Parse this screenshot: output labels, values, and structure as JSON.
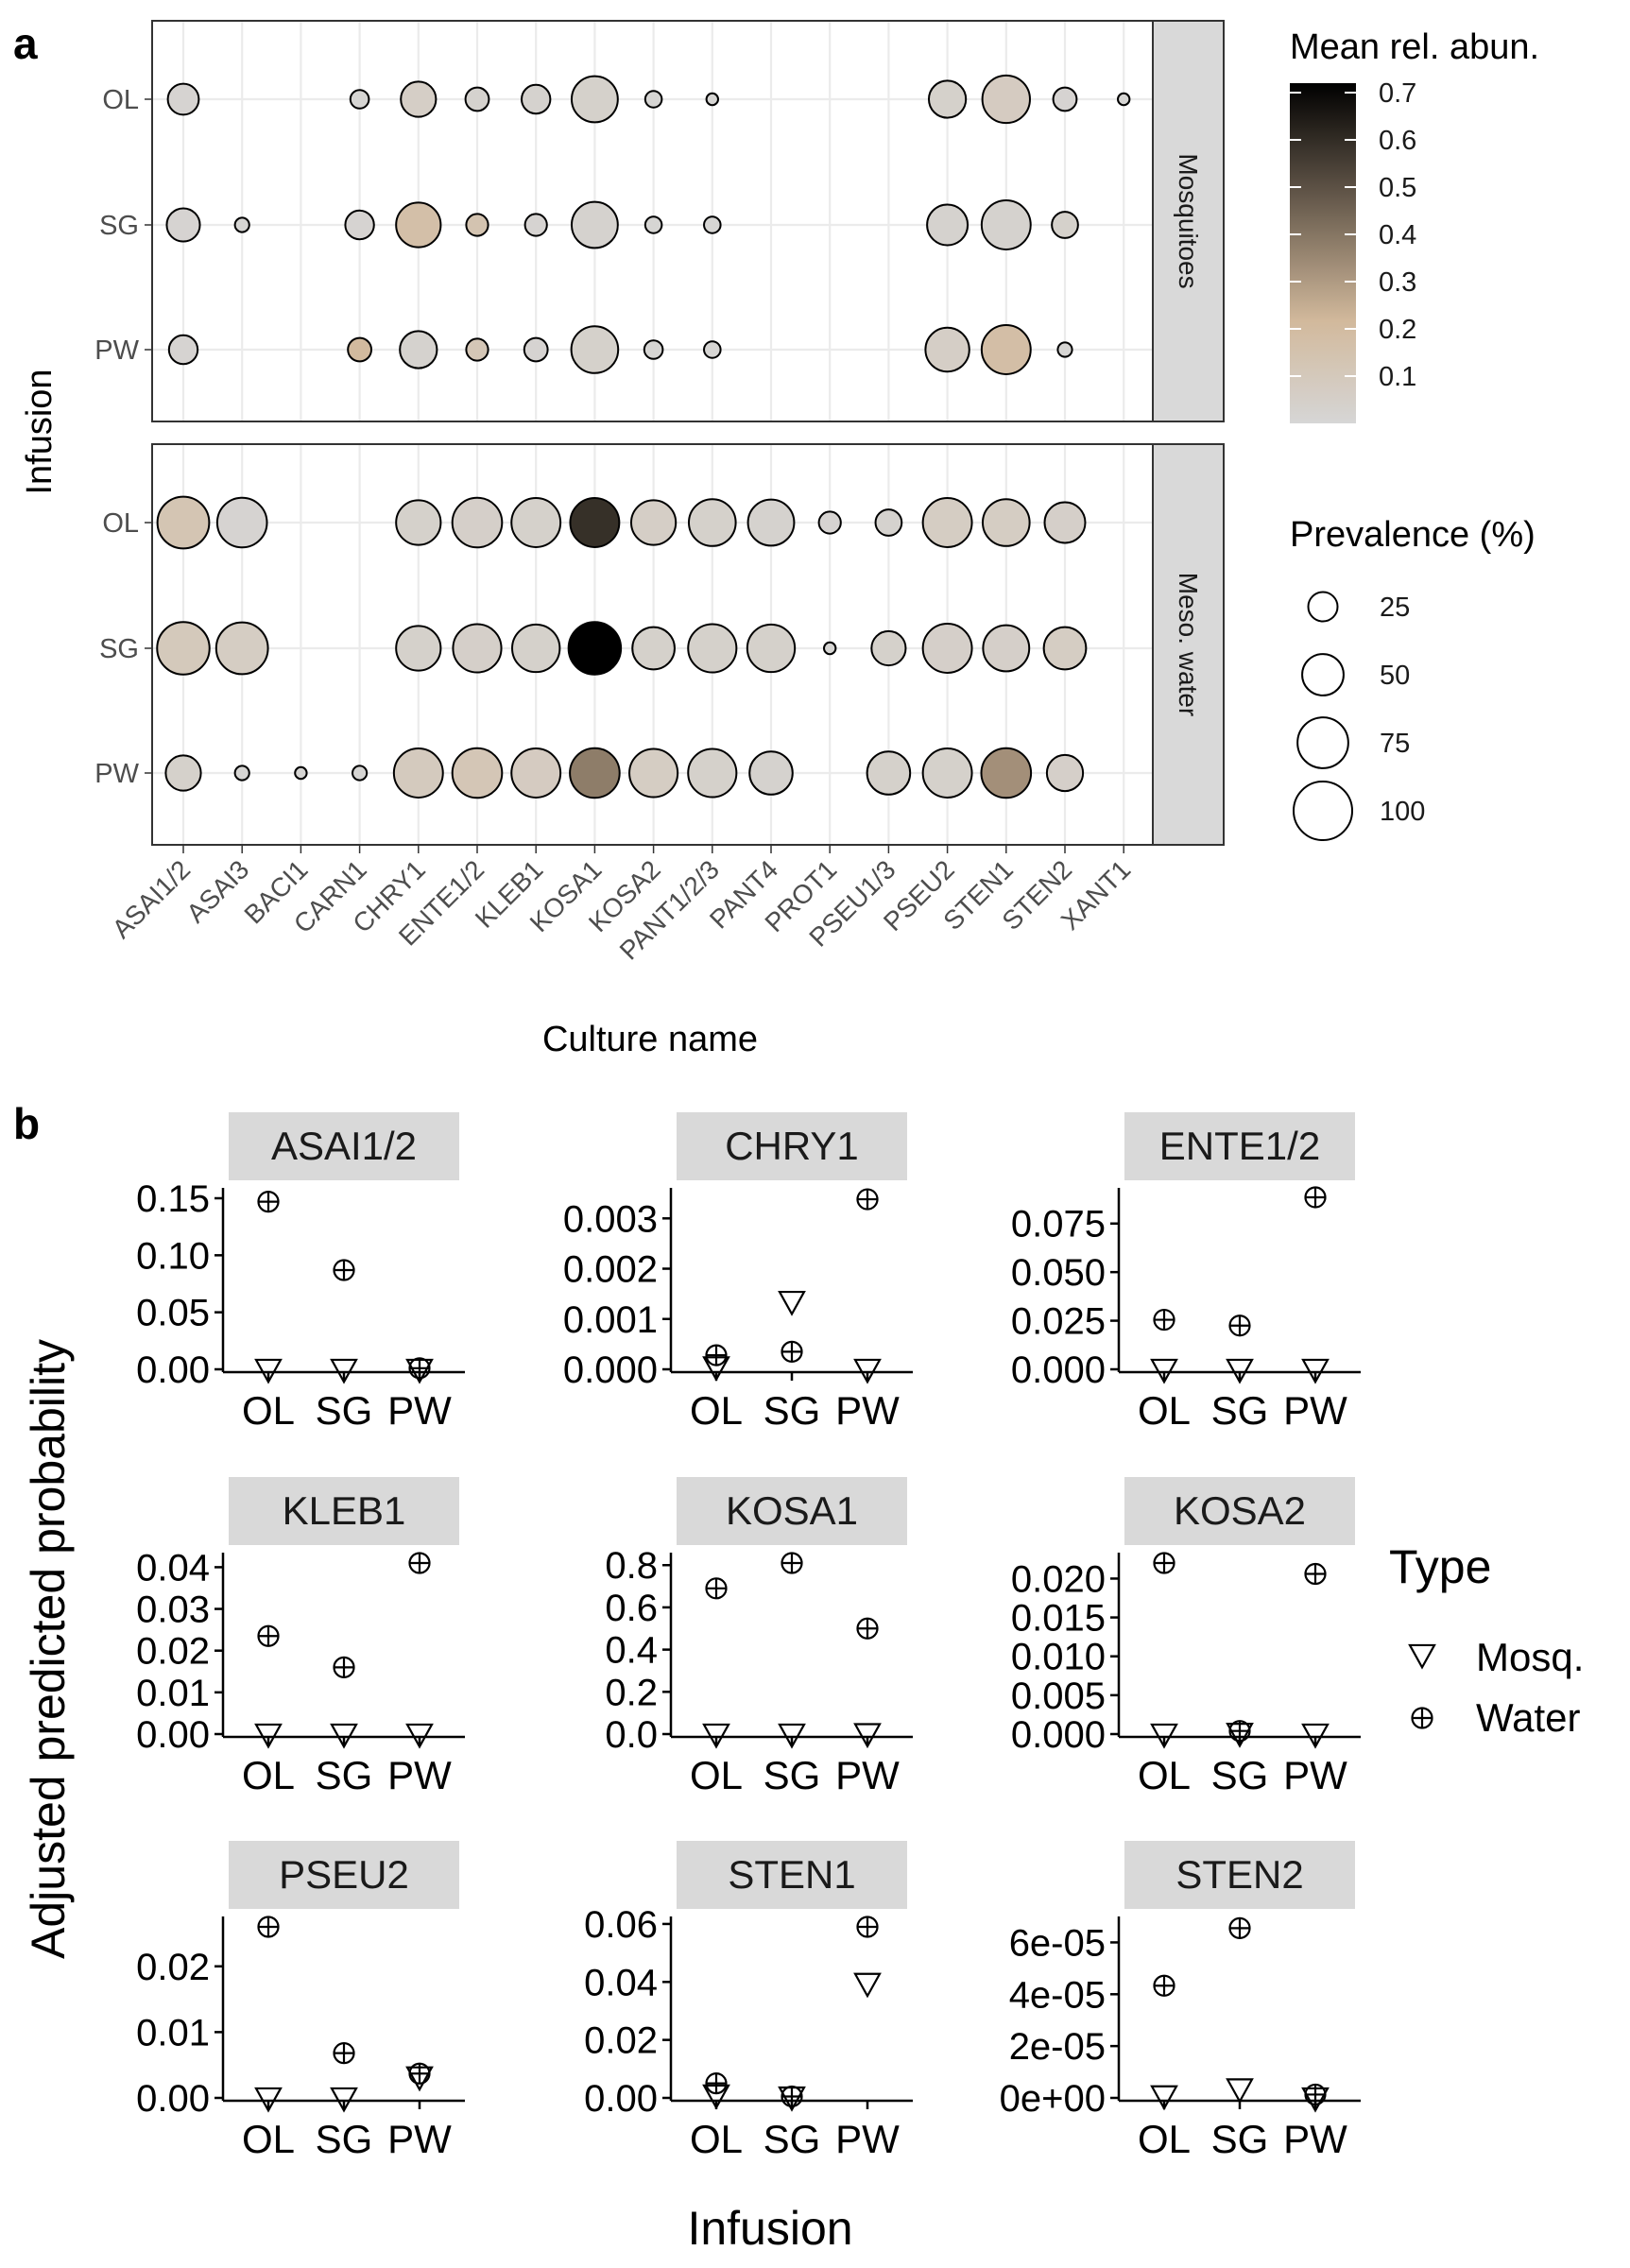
{
  "panel_labels": {
    "a": "a",
    "b": "b"
  },
  "chart_data": [
    {
      "type": "scatter",
      "subtype": "bubble",
      "panel": "a",
      "xlabel": "Culture name",
      "ylabel": "Infusion",
      "categories": [
        "ASAI1/2",
        "ASAI3",
        "BACI1",
        "CARN1",
        "CHRY1",
        "ENTE1/2",
        "KLEB1",
        "KOSA1",
        "KOSA2",
        "PANT1/2/3",
        "PANT4",
        "PROT1",
        "PSEU1/3",
        "PSEU2",
        "STEN1",
        "STEN2",
        "XANT1"
      ],
      "rows": [
        "OL",
        "SG",
        "PW"
      ],
      "facets": [
        "Mosquitoes",
        "Meso. water"
      ],
      "grid": true,
      "color_legend": {
        "title": "Mean rel. abun.",
        "ticks": [
          "0.7",
          "0.6",
          "0.5",
          "0.4",
          "0.3",
          "0.2",
          "0.1"
        ],
        "range": [
          0.0,
          0.72
        ],
        "low_color": "#d6d6d6",
        "mid_color": "#d2b99c",
        "high_color": "#000000"
      },
      "size_legend": {
        "title": "Prevalence (%)",
        "values": [
          25,
          50,
          75,
          100
        ]
      },
      "points": {
        "Mosquitoes": {
          "OL": [
            [
              0,
              28,
              0.02
            ],
            [
              3,
              10,
              0.01
            ],
            [
              4,
              36,
              0.06
            ],
            [
              5,
              16,
              0.03
            ],
            [
              6,
              24,
              0.03
            ],
            [
              7,
              62,
              0.04
            ],
            [
              8,
              8,
              0.01
            ],
            [
              9,
              4,
              0.01
            ],
            [
              13,
              40,
              0.04
            ],
            [
              14,
              66,
              0.08
            ],
            [
              15,
              16,
              0.02
            ],
            [
              16,
              4,
              0.01
            ]
          ],
          "SG": [
            [
              0,
              32,
              0.02
            ],
            [
              1,
              6,
              0.01
            ],
            [
              3,
              24,
              0.02
            ],
            [
              4,
              58,
              0.17
            ],
            [
              5,
              14,
              0.14
            ],
            [
              6,
              14,
              0.02
            ],
            [
              7,
              62,
              0.03
            ],
            [
              8,
              8,
              0.01
            ],
            [
              9,
              8,
              0.01
            ],
            [
              13,
              48,
              0.03
            ],
            [
              14,
              70,
              0.03
            ],
            [
              15,
              20,
              0.04
            ]
          ],
          "PW": [
            [
              0,
              24,
              0.02
            ],
            [
              3,
              16,
              0.21
            ],
            [
              4,
              40,
              0.03
            ],
            [
              5,
              14,
              0.12
            ],
            [
              6,
              16,
              0.02
            ],
            [
              7,
              64,
              0.04
            ],
            [
              8,
              10,
              0.01
            ],
            [
              9,
              8,
              0.01
            ],
            [
              13,
              56,
              0.06
            ],
            [
              14,
              70,
              0.18
            ],
            [
              15,
              6,
              0.01
            ]
          ]
        },
        "Meso. water": {
          "OL": [
            [
              0,
              78,
              0.13
            ],
            [
              1,
              72,
              0.02
            ],
            [
              4,
              58,
              0.04
            ],
            [
              5,
              72,
              0.05
            ],
            [
              6,
              70,
              0.04
            ],
            [
              7,
              70,
              0.59
            ],
            [
              8,
              58,
              0.06
            ],
            [
              9,
              64,
              0.04
            ],
            [
              10,
              62,
              0.03
            ],
            [
              11,
              14,
              0.02
            ],
            [
              12,
              20,
              0.03
            ],
            [
              13,
              70,
              0.07
            ],
            [
              14,
              64,
              0.07
            ],
            [
              15,
              48,
              0.05
            ]
          ],
          "SG": [
            [
              0,
              80,
              0.1
            ],
            [
              1,
              78,
              0.07
            ],
            [
              4,
              58,
              0.04
            ],
            [
              5,
              68,
              0.05
            ],
            [
              6,
              66,
              0.04
            ],
            [
              7,
              80,
              0.72
            ],
            [
              8,
              52,
              0.04
            ],
            [
              9,
              68,
              0.04
            ],
            [
              10,
              66,
              0.04
            ],
            [
              11,
              4,
              0.01
            ],
            [
              12,
              34,
              0.04
            ],
            [
              13,
              70,
              0.05
            ],
            [
              14,
              62,
              0.05
            ],
            [
              15,
              52,
              0.07
            ]
          ],
          "PW": [
            [
              0,
              36,
              0.04
            ],
            [
              1,
              6,
              0.01
            ],
            [
              2,
              4,
              0.01
            ],
            [
              3,
              6,
              0.01
            ],
            [
              4,
              70,
              0.09
            ],
            [
              5,
              72,
              0.12
            ],
            [
              6,
              70,
              0.08
            ],
            [
              7,
              72,
              0.38
            ],
            [
              8,
              68,
              0.07
            ],
            [
              9,
              68,
              0.04
            ],
            [
              10,
              54,
              0.03
            ],
            [
              12,
              54,
              0.04
            ],
            [
              13,
              70,
              0.04
            ],
            [
              14,
              72,
              0.33
            ],
            [
              15,
              38,
              0.05
            ]
          ]
        }
      }
    },
    {
      "type": "scatter",
      "panel": "b",
      "xlabel": "Infusion",
      "ylabel": "Adjusted predicted probability",
      "x": [
        "OL",
        "SG",
        "PW"
      ],
      "legend": {
        "title": "Type",
        "entries": [
          "Mosq.",
          "Water"
        ],
        "position": "right"
      },
      "facets": [
        {
          "name": "ASAI1/2",
          "ylim": [
            0,
            0.15
          ],
          "ticks": [
            "0.00",
            "0.05",
            "0.10",
            "0.15"
          ],
          "tick_values": [
            0,
            0.05,
            0.1,
            0.15
          ],
          "series": [
            {
              "name": "Mosq.",
              "values": [
                0,
                0,
                0
              ]
            },
            {
              "name": "Water",
              "values": [
                0.147,
                0.087,
                0.001
              ]
            }
          ]
        },
        {
          "name": "CHRY1",
          "ylim": [
            0,
            0.0034
          ],
          "ticks": [
            "0.000",
            "0.001",
            "0.002",
            "0.003"
          ],
          "tick_values": [
            0,
            0.001,
            0.002,
            0.003
          ],
          "series": [
            {
              "name": "Mosq.",
              "values": [
                5e-05,
                0.00135,
                0
              ]
            },
            {
              "name": "Water",
              "values": [
                0.00028,
                0.00035,
                0.00338
              ]
            }
          ]
        },
        {
          "name": "ENTE1/2",
          "ylim": [
            0,
            0.088
          ],
          "ticks": [
            "0.000",
            "0.025",
            "0.050",
            "0.075"
          ],
          "tick_values": [
            0,
            0.025,
            0.05,
            0.075
          ],
          "series": [
            {
              "name": "Mosq.",
              "values": [
                0,
                0,
                0
              ]
            },
            {
              "name": "Water",
              "values": [
                0.0255,
                0.0225,
                0.0885
              ]
            }
          ]
        },
        {
          "name": "KLEB1",
          "ylim": [
            0,
            0.041
          ],
          "ticks": [
            "0.00",
            "0.01",
            "0.02",
            "0.03",
            "0.04"
          ],
          "tick_values": [
            0,
            0.01,
            0.02,
            0.03,
            0.04
          ],
          "series": [
            {
              "name": "Mosq.",
              "values": [
                0,
                0,
                0
              ]
            },
            {
              "name": "Water",
              "values": [
                0.0235,
                0.016,
                0.041
              ]
            }
          ]
        },
        {
          "name": "KOSA1",
          "ylim": [
            0,
            0.81
          ],
          "ticks": [
            "0.0",
            "0.2",
            "0.4",
            "0.6",
            "0.8"
          ],
          "tick_values": [
            0,
            0.2,
            0.4,
            0.6,
            0.8
          ],
          "series": [
            {
              "name": "Mosq.",
              "values": [
                0,
                0,
                0.002
              ]
            },
            {
              "name": "Water",
              "values": [
                0.69,
                0.81,
                0.5
              ]
            }
          ]
        },
        {
          "name": "KOSA2",
          "ylim": [
            0,
            0.022
          ],
          "ticks": [
            "0.000",
            "0.005",
            "0.010",
            "0.015",
            "0.020"
          ],
          "tick_values": [
            0,
            0.005,
            0.01,
            0.015,
            0.02
          ],
          "series": [
            {
              "name": "Mosq.",
              "values": [
                0,
                0.0001,
                0
              ]
            },
            {
              "name": "Water",
              "values": [
                0.022,
                0.0004,
                0.0206
              ]
            }
          ]
        },
        {
          "name": "PSEU2",
          "ylim": [
            0,
            0.026
          ],
          "ticks": [
            "0.00",
            "0.01",
            "0.02"
          ],
          "tick_values": [
            0,
            0.01,
            0.02
          ],
          "series": [
            {
              "name": "Mosq.",
              "values": [
                0,
                0,
                0.0032
              ]
            },
            {
              "name": "Water",
              "values": [
                0.026,
                0.0068,
                0.0037
              ]
            }
          ]
        },
        {
          "name": "STEN1",
          "ylim": [
            0,
            0.059
          ],
          "ticks": [
            "0.00",
            "0.02",
            "0.04",
            "0.06"
          ],
          "tick_values": [
            0,
            0.02,
            0.04,
            0.06
          ],
          "series": [
            {
              "name": "Mosq.",
              "values": [
                0.001,
                0.0003,
                0.0395
              ]
            },
            {
              "name": "Water",
              "values": [
                0.005,
                0.0005,
                0.059
              ]
            }
          ]
        },
        {
          "name": "STEN2",
          "ylim": [
            0,
            6.6e-05
          ],
          "ticks": [
            "0e+00",
            "2e-05",
            "4e-05",
            "6e-05"
          ],
          "tick_values": [
            0,
            2e-05,
            4e-05,
            6e-05
          ],
          "series": [
            {
              "name": "Mosq.",
              "values": [
                8e-07,
                3.5e-06,
                0
              ]
            },
            {
              "name": "Water",
              "values": [
                4.33e-05,
                6.55e-05,
                1.3e-06
              ]
            }
          ]
        }
      ]
    }
  ]
}
